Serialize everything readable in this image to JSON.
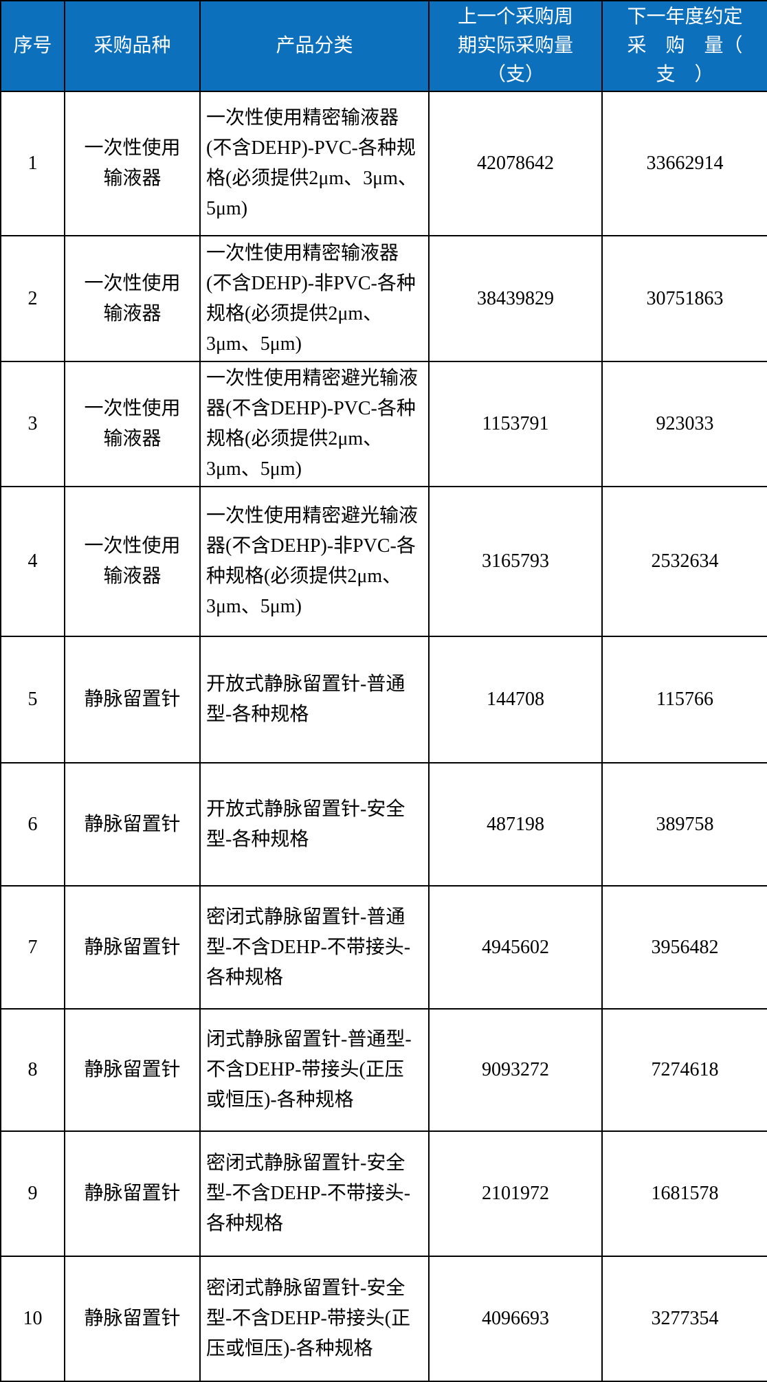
{
  "colors": {
    "header_bg": "#0d70bc",
    "header_text": "#ffffff",
    "border": "#000000",
    "body_text": "#000000",
    "body_bg": "#ffffff"
  },
  "table": {
    "headers": [
      {
        "label": "序号"
      },
      {
        "label": "采购品种"
      },
      {
        "label": "产品分类"
      },
      {
        "label": "上一个采购周\n期实际采购量\n（支）"
      },
      {
        "label": "下一年度约定\n采　购　量（\n支　）"
      }
    ],
    "rows": [
      {
        "no": "1",
        "variety": "一次性使用\n输液器",
        "category": "一次性使用精密输液器(不含DEHP)-PVC-各种规格(必须提供2μm、3μm、5μm)",
        "prev_qty": "42078642",
        "next_qty": "33662914"
      },
      {
        "no": "2",
        "variety": "一次性使用\n输液器",
        "category": "一次性使用精密输液器(不含DEHP)-非PVC-各种规格(必须提供2μm、3μm、5μm)",
        "prev_qty": "38439829",
        "next_qty": "30751863"
      },
      {
        "no": "3",
        "variety": "一次性使用\n输液器",
        "category": "一次性使用精密避光输液器(不含DEHP)-PVC-各种规格(必须提供2μm、3μm、5μm)",
        "prev_qty": "1153791",
        "next_qty": "923033"
      },
      {
        "no": "4",
        "variety": "一次性使用\n输液器",
        "category": "一次性使用精密避光输液器(不含DEHP)-非PVC-各种规格(必须提供2μm、3μm、5μm)",
        "prev_qty": "3165793",
        "next_qty": "2532634"
      },
      {
        "no": "5",
        "variety": "静脉留置针",
        "category": "开放式静脉留置针-普通型-各种规格",
        "prev_qty": "144708",
        "next_qty": "115766"
      },
      {
        "no": "6",
        "variety": "静脉留置针",
        "category": "开放式静脉留置针-安全型-各种规格",
        "prev_qty": "487198",
        "next_qty": "389758"
      },
      {
        "no": "7",
        "variety": "静脉留置针",
        "category": "密闭式静脉留置针-普通型-不含DEHP-不带接头-各种规格",
        "prev_qty": "4945602",
        "next_qty": "3956482"
      },
      {
        "no": "8",
        "variety": "静脉留置针",
        "category": "闭式静脉留置针-普通型-不含DEHP-带接头(正压或恒压)-各种规格",
        "prev_qty": "9093272",
        "next_qty": "7274618"
      },
      {
        "no": "9",
        "variety": "静脉留置针",
        "category": "密闭式静脉留置针-安全型-不含DEHP-不带接头-各种规格",
        "prev_qty": "2101972",
        "next_qty": "1681578"
      },
      {
        "no": "10",
        "variety": "静脉留置针",
        "category": "密闭式静脉留置针-安全型-不含DEHP-带接头(正压或恒压)-各种规格",
        "prev_qty": "4096693",
        "next_qty": "3277354"
      }
    ]
  }
}
